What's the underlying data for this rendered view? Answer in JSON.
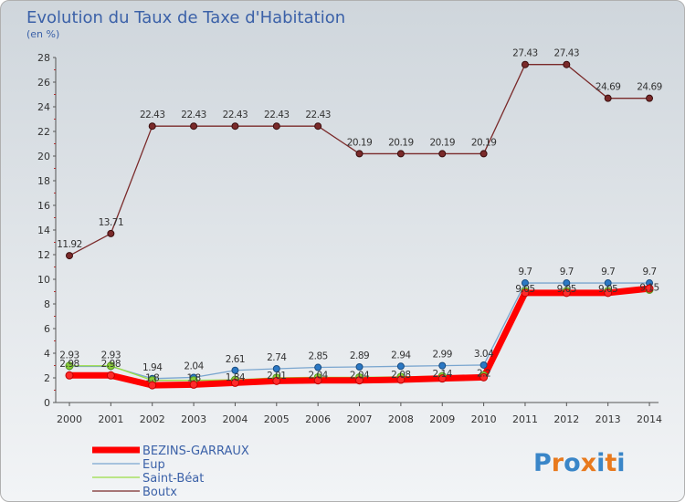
{
  "chart_data": {
    "type": "line",
    "title": "Evolution du Taux de Taxe d'Habitation",
    "unit_label": "(en %)",
    "x": [
      "2000",
      "2001",
      "2002",
      "2003",
      "2004",
      "2005",
      "2006",
      "2007",
      "2008",
      "2009",
      "2010",
      "2011",
      "2012",
      "2013",
      "2014"
    ],
    "ylim": [
      0,
      28
    ],
    "yticks": [
      0,
      2,
      4,
      6,
      8,
      10,
      12,
      14,
      16,
      18,
      20,
      22,
      24,
      26,
      28
    ],
    "grid": false,
    "legend_position": "bottom-left",
    "series": [
      {
        "name": "BEZINS-GARRAUX",
        "color": "#ff0000",
        "values": [
          2.2,
          2.2,
          1.4,
          1.45,
          1.6,
          1.75,
          1.8,
          1.8,
          1.85,
          1.95,
          2.05,
          8.9,
          8.9,
          8.9,
          9.25
        ]
      },
      {
        "name": "Eup",
        "color": "#7aa6cf",
        "values": [
          2.93,
          2.93,
          1.94,
          2.04,
          2.61,
          2.74,
          2.85,
          2.89,
          2.94,
          2.99,
          3.04,
          9.7,
          9.7,
          9.7,
          9.7
        ],
        "labels": [
          "2.93",
          "2.93",
          "1.94",
          "2.04",
          "2.61",
          "2.74",
          "2.85",
          "2.89",
          "2.94",
          "2.99",
          "3.04",
          "9.7",
          "9.7",
          "9.7",
          "9.7"
        ]
      },
      {
        "name": "Saint-Béat",
        "color": "#99dd44",
        "values": [
          2.98,
          2.98,
          1.8,
          1.8,
          1.84,
          2.01,
          2.04,
          2.04,
          2.08,
          2.14,
          2.2,
          9.05,
          9.05,
          9.05,
          9.15
        ],
        "labels": [
          "2.98",
          "2.98",
          "1.8",
          "1.8",
          "1.84",
          "2.01",
          "2.04",
          "2.04",
          "2.08",
          "2.14",
          "2.2",
          "9.05",
          "9.05",
          "9.05",
          "9.15"
        ]
      },
      {
        "name": "Boutx",
        "color": "#7a2a2a",
        "values": [
          11.92,
          13.71,
          22.43,
          22.43,
          22.43,
          22.43,
          22.43,
          20.19,
          20.19,
          20.19,
          20.19,
          27.43,
          27.43,
          24.69,
          24.69
        ],
        "labels": [
          "11.92",
          "13.71",
          "22.43",
          "22.43",
          "22.43",
          "22.43",
          "22.43",
          "20.19",
          "20.19",
          "20.19",
          "20.19",
          "27.43",
          "27.43",
          "24.69",
          "24.69"
        ]
      }
    ]
  },
  "brand": {
    "logo_text": "Proxiti",
    "letter_colors": [
      "#3a86c8",
      "#e87a1e",
      "#3a86c8",
      "#e87a1e",
      "#3a86c8",
      "#e87a1e",
      "#3a86c8"
    ]
  }
}
